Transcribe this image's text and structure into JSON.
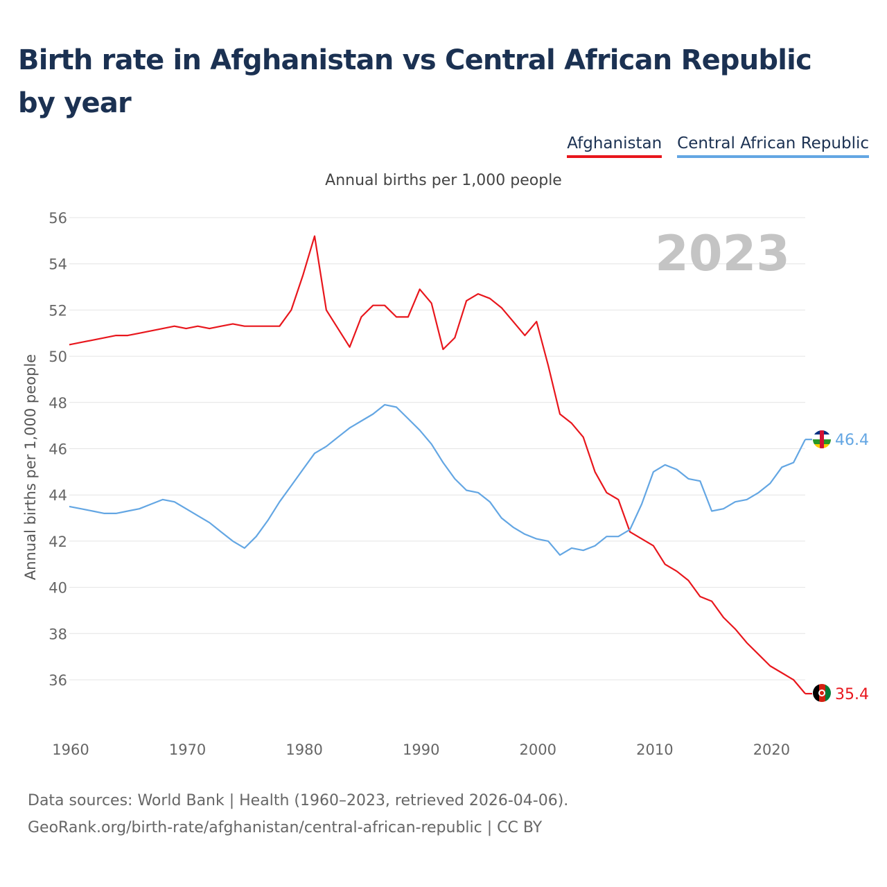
{
  "title": "Birth rate in Afghanistan vs Central African Republic by year",
  "subtitle": "Annual births per 1,000 people",
  "year_label": "2023",
  "footer": {
    "line1": "Data sources: World Bank | Health (1960–2023, retrieved 2026-04-06).",
    "line2": "GeoRank.org/birth-rate/afghanistan/central-african-republic | CC BY"
  },
  "chart_data": {
    "type": "line",
    "title": "Birth rate in Afghanistan vs Central African Republic by year",
    "xlabel": "",
    "ylabel": "Annual births per 1,000 people",
    "xlim": [
      1960,
      2023
    ],
    "ylim": [
      34.5,
      56
    ],
    "x_ticks": [
      1960,
      1970,
      1980,
      1990,
      2000,
      2010,
      2020
    ],
    "y_ticks": [
      36,
      38,
      40,
      42,
      44,
      46,
      48,
      50,
      52,
      54,
      56
    ],
    "grid": true,
    "legend_position": "top-right",
    "x": [
      1960,
      1961,
      1962,
      1963,
      1964,
      1965,
      1966,
      1967,
      1968,
      1969,
      1970,
      1971,
      1972,
      1973,
      1974,
      1975,
      1976,
      1977,
      1978,
      1979,
      1980,
      1981,
      1982,
      1983,
      1984,
      1985,
      1986,
      1987,
      1988,
      1989,
      1990,
      1991,
      1992,
      1993,
      1994,
      1995,
      1996,
      1997,
      1998,
      1999,
      2000,
      2001,
      2002,
      2003,
      2004,
      2005,
      2006,
      2007,
      2008,
      2009,
      2010,
      2011,
      2012,
      2013,
      2014,
      2015,
      2016,
      2017,
      2018,
      2019,
      2020,
      2021,
      2022,
      2023
    ],
    "series": [
      {
        "name": "Afghanistan",
        "color": "#e8161c",
        "end_label": "35.4",
        "values": [
          50.5,
          50.6,
          50.7,
          50.8,
          50.9,
          50.9,
          51.0,
          51.1,
          51.2,
          51.3,
          51.2,
          51.3,
          51.2,
          51.3,
          51.4,
          51.3,
          51.3,
          51.3,
          51.3,
          52.0,
          53.5,
          55.2,
          52.0,
          51.2,
          50.4,
          51.7,
          52.2,
          52.2,
          51.7,
          51.7,
          52.9,
          52.3,
          50.3,
          50.8,
          52.4,
          52.7,
          52.5,
          52.1,
          51.5,
          50.9,
          51.5,
          49.6,
          47.5,
          47.1,
          46.5,
          45.0,
          44.1,
          43.8,
          42.4,
          42.1,
          41.8,
          41.0,
          40.7,
          40.3,
          39.6,
          39.4,
          38.7,
          38.2,
          37.6,
          37.1,
          36.6,
          36.3,
          36.0,
          35.4
        ]
      },
      {
        "name": "Central African Republic",
        "color": "#63a6e3",
        "end_label": "46.4",
        "values": [
          43.5,
          43.4,
          43.3,
          43.2,
          43.2,
          43.3,
          43.4,
          43.6,
          43.8,
          43.7,
          43.4,
          43.1,
          42.8,
          42.4,
          42.0,
          41.7,
          42.2,
          42.9,
          43.7,
          44.4,
          45.1,
          45.8,
          46.1,
          46.5,
          46.9,
          47.2,
          47.5,
          47.9,
          47.8,
          47.3,
          46.8,
          46.2,
          45.4,
          44.7,
          44.2,
          44.1,
          43.7,
          43.0,
          42.6,
          42.3,
          42.1,
          42.0,
          41.4,
          41.7,
          41.6,
          41.8,
          42.2,
          42.2,
          42.5,
          43.6,
          45.0,
          45.3,
          45.1,
          44.7,
          44.6,
          43.3,
          43.4,
          43.7,
          43.8,
          44.1,
          44.5,
          45.2,
          45.4,
          46.4
        ]
      }
    ]
  }
}
